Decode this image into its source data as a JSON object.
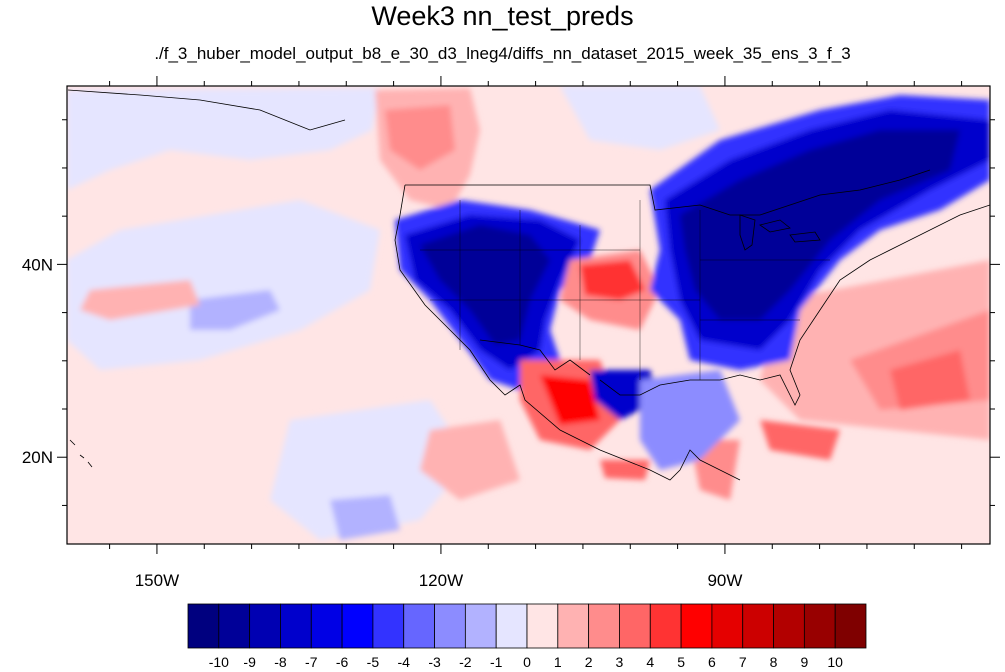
{
  "title": "Week3 nn_test_preds",
  "subtitle": "./f_3_huber_model_output_b8_e_30_d3_lneg4/diffs_nn_dataset_2015_week_35_ens_3_f_3",
  "map": {
    "lon_range": [
      -159.5,
      -62
    ],
    "lat_range": [
      11,
      58.5
    ],
    "lon_ticks": [
      {
        "lon": -150,
        "label": "150W"
      },
      {
        "lon": -120,
        "label": "120W"
      },
      {
        "lon": -90,
        "label": "90W"
      }
    ],
    "lat_ticks": [
      {
        "lat": 40,
        "label": "40N"
      },
      {
        "lat": 20,
        "label": "20N"
      }
    ]
  },
  "colorbar": {
    "labels": [
      "-10",
      "-9",
      "-8",
      "-7",
      "-6",
      "-5",
      "-4",
      "-3",
      "-2",
      "-1",
      "0",
      "1",
      "2",
      "3",
      "4",
      "5",
      "6",
      "7",
      "8",
      "9",
      "10"
    ],
    "colors": [
      "#00007f",
      "#000098",
      "#0000b2",
      "#0000cc",
      "#0000e5",
      "#0000ff",
      "#3333ff",
      "#6666ff",
      "#8c8cff",
      "#b2b2ff",
      "#e5e5ff",
      "#ffe5e5",
      "#ffb2b2",
      "#ff8c8c",
      "#ff6666",
      "#ff3333",
      "#ff0000",
      "#e50000",
      "#cc0000",
      "#b20000",
      "#980000",
      "#7f0000"
    ]
  }
}
